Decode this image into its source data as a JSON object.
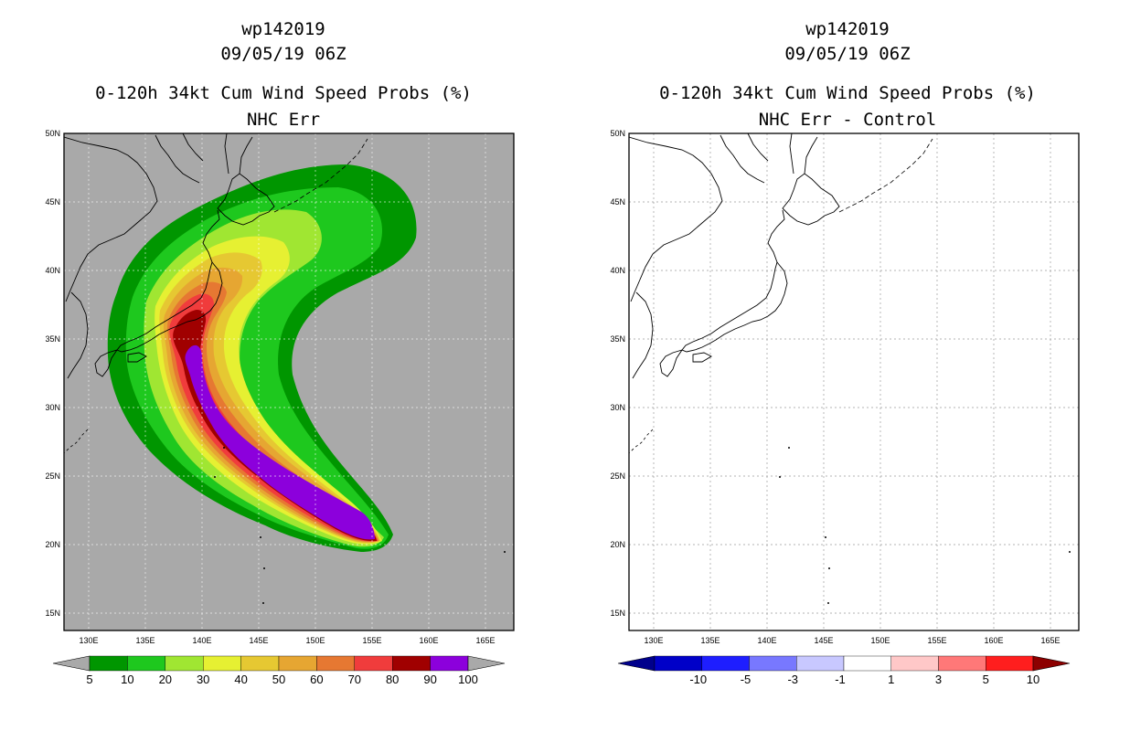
{
  "left": {
    "title_line1": "wp142019",
    "title_line2": "09/05/19 06Z",
    "title_line3": "0-120h 34kt Cum Wind Speed Probs (%)",
    "title_line4": "NHC Err",
    "lat_labels": [
      "50N",
      "45N",
      "40N",
      "35N",
      "30N",
      "25N",
      "20N",
      "15N"
    ],
    "lon_labels": [
      "130E",
      "135E",
      "140E",
      "145E",
      "150E",
      "155E",
      "160E",
      "165E"
    ],
    "colorbar": {
      "labels": [
        "5",
        "10",
        "20",
        "30",
        "40",
        "50",
        "60",
        "70",
        "80",
        "90",
        "100"
      ],
      "colors": [
        "#009600",
        "#1ec81e",
        "#a0e632",
        "#e6f032",
        "#e6c832",
        "#e6a632",
        "#e67832",
        "#f03c3c",
        "#a00000",
        "#8c00dc"
      ],
      "under_color": "#a9a9a9",
      "over_color": "#a9a9a9"
    },
    "background_color": "#a9a9a9"
  },
  "right": {
    "title_line1": "wp142019",
    "title_line2": "09/05/19 06Z",
    "title_line3": "0-120h 34kt Cum Wind Speed Probs (%)",
    "title_line4": "NHC Err - Control",
    "lat_labels": [
      "50N",
      "45N",
      "40N",
      "35N",
      "30N",
      "25N",
      "20N",
      "15N"
    ],
    "lon_labels": [
      "130E",
      "135E",
      "140E",
      "145E",
      "150E",
      "155E",
      "160E",
      "165E"
    ],
    "colorbar": {
      "labels": [
        "-10",
        "-5",
        "-3",
        "-1",
        "1",
        "3",
        "5",
        "10"
      ],
      "colors": [
        "#0000c8",
        "#1e1eff",
        "#7878ff",
        "#c8c8ff",
        "#ffffff",
        "#ffc8c8",
        "#ff7878",
        "#ff1e1e"
      ],
      "under_color": "#00008c",
      "over_color": "#8c0000"
    },
    "background_color": "#ffffff"
  }
}
